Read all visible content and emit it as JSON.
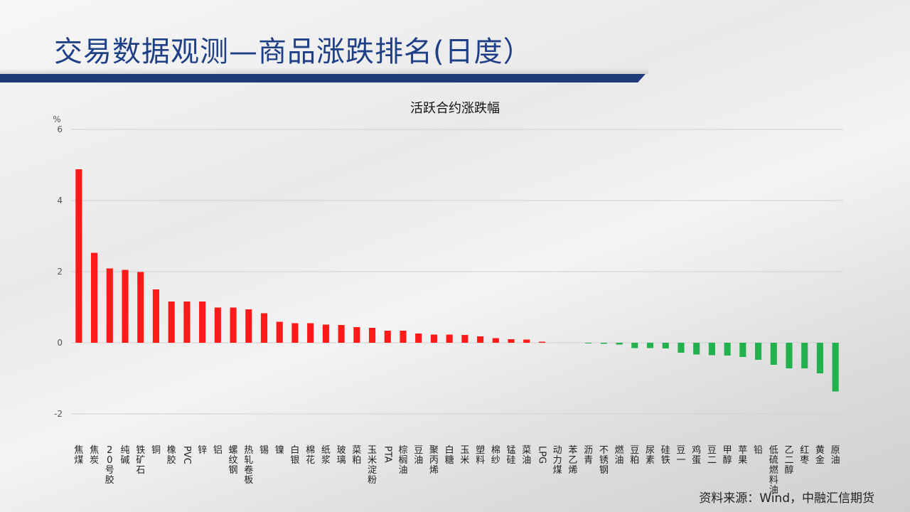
{
  "slide": {
    "title": "交易数据观测—商品涨跌排名(日度）",
    "source": "资料来源：Wind，中融汇信期货"
  },
  "colors": {
    "up": "#ff1a1a",
    "down": "#22b14c",
    "title": "#1f3f86",
    "bar_accent": "#1f3c7a",
    "gridline": "#d0d0d0",
    "axis_text": "#555555"
  },
  "chart_data": {
    "type": "bar",
    "title": "活跃合约涨跌幅",
    "ylabel": "%",
    "ylim": [
      -2,
      6
    ],
    "yticks": [
      -2,
      0,
      2,
      4,
      6
    ],
    "grid": true,
    "categories": [
      "焦煤",
      "焦炭",
      "20号胶",
      "纯碱",
      "铁矿石",
      "铜",
      "橡胶",
      "PVC",
      "锌",
      "铝",
      "螺纹钢",
      "热轧卷板",
      "锡",
      "镍",
      "白银",
      "棉花",
      "纸浆",
      "玻璃",
      "菜粕",
      "玉米淀粉",
      "PTA",
      "棕榈油",
      "豆油",
      "聚丙烯",
      "白糖",
      "玉米",
      "塑料",
      "棉纱",
      "锰硅",
      "菜油",
      "LPG",
      "动力煤",
      "苯乙烯",
      "沥青",
      "不锈钢",
      "燃油",
      "豆粕",
      "尿素",
      "硅铁",
      "豆一",
      "鸡蛋",
      "豆二",
      "甲醇",
      "苹果",
      "铅",
      "低硫燃料油",
      "乙二醇",
      "红枣",
      "黄金",
      "原油"
    ],
    "values": [
      4.88,
      2.53,
      2.09,
      2.05,
      1.99,
      1.5,
      1.16,
      1.16,
      1.16,
      0.99,
      0.99,
      0.94,
      0.83,
      0.59,
      0.55,
      0.55,
      0.51,
      0.5,
      0.44,
      0.42,
      0.34,
      0.34,
      0.26,
      0.23,
      0.23,
      0.22,
      0.18,
      0.13,
      0.1,
      0.09,
      0.03,
      0.0,
      0.0,
      -0.02,
      -0.03,
      -0.05,
      -0.15,
      -0.15,
      -0.16,
      -0.28,
      -0.33,
      -0.35,
      -0.36,
      -0.4,
      -0.48,
      -0.62,
      -0.72,
      -0.72,
      -0.86,
      -1.37
    ]
  }
}
